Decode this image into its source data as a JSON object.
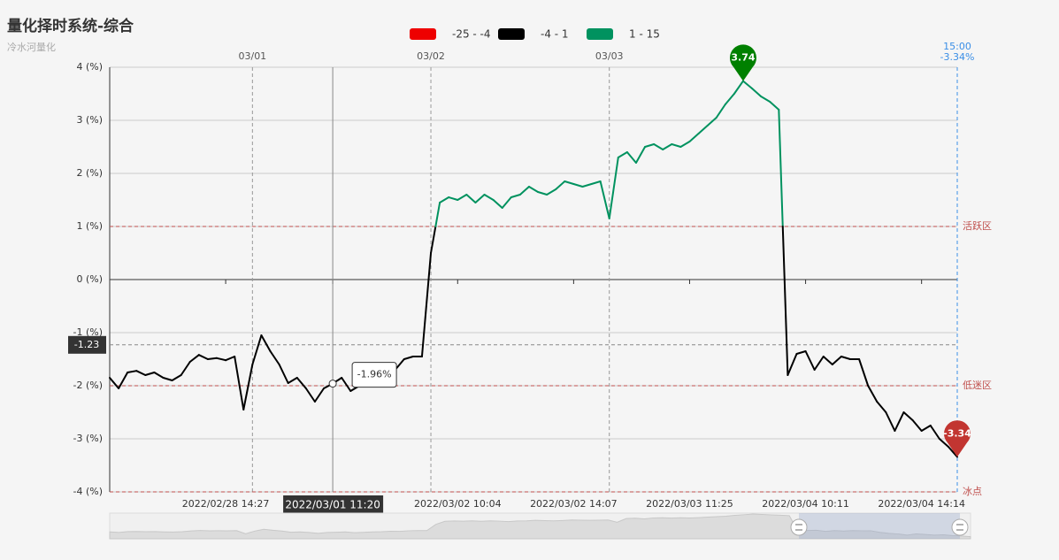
{
  "chart_data": {
    "type": "line",
    "title": "量化择时系统-综合",
    "subtitle": "冷水河量化",
    "pieces": [
      {
        "min": -25,
        "max": -4,
        "label": "-25 - -4",
        "color": "#ee0000"
      },
      {
        "min": -4,
        "max": 1,
        "label": "-4 - 1",
        "color": "#000000"
      },
      {
        "min": 1,
        "max": 15,
        "label": "1 - 15",
        "color": "#00925f"
      }
    ],
    "categories": [
      null,
      null,
      null,
      null,
      null,
      null,
      null,
      null,
      null,
      null,
      null,
      null,
      null,
      "2022/02/28 14:27",
      null,
      null,
      null,
      null,
      null,
      null,
      null,
      null,
      null,
      null,
      null,
      "2022/03/01 11:20",
      null,
      null,
      null,
      null,
      null,
      null,
      null,
      null,
      null,
      null,
      null,
      null,
      null,
      "2022/03/02 10:04",
      null,
      null,
      null,
      null,
      null,
      null,
      null,
      null,
      null,
      null,
      null,
      null,
      "2022/03/02 14:07",
      null,
      null,
      null,
      null,
      null,
      null,
      null,
      null,
      null,
      null,
      null,
      null,
      "2022/03/03 11:25",
      null,
      null,
      null,
      null,
      null,
      null,
      null,
      null,
      null,
      null,
      null,
      null,
      "2022/03/04 10:11",
      null,
      null,
      null,
      null,
      null,
      null,
      null,
      null,
      null,
      null,
      null,
      null,
      "2022/03/04 14:14",
      null,
      null,
      null,
      null
    ],
    "day_labels": [
      null,
      null,
      null,
      null,
      null,
      null,
      null,
      null,
      null,
      null,
      null,
      null,
      null,
      null,
      null,
      null,
      "03/01",
      null,
      null,
      null,
      null,
      null,
      null,
      null,
      null,
      null,
      null,
      null,
      null,
      null,
      null,
      null,
      null,
      null,
      null,
      null,
      "03/02",
      null,
      null,
      null,
      null,
      null,
      null,
      null,
      null,
      null,
      null,
      null,
      null,
      null,
      null,
      null,
      null,
      null,
      null,
      null,
      "03/03",
      null,
      null,
      null,
      null,
      null,
      null,
      null,
      null,
      null,
      null,
      null,
      null,
      null,
      null,
      null,
      null,
      null,
      null,
      null,
      null,
      null,
      null,
      null,
      null,
      null,
      null,
      null,
      null,
      null,
      null,
      null,
      null,
      null,
      null,
      null,
      null,
      null,
      null,
      "15:00"
    ],
    "end_label": "-3.34%",
    "values": [
      -1.85,
      -2.05,
      -1.75,
      -1.72,
      -1.8,
      -1.75,
      -1.85,
      -1.9,
      -1.8,
      -1.55,
      -1.42,
      -1.5,
      -1.48,
      -1.52,
      -1.45,
      -2.45,
      -1.6,
      -1.05,
      -1.35,
      -1.6,
      -1.95,
      -1.85,
      -2.05,
      -2.3,
      -2.05,
      -1.96,
      -1.85,
      -2.1,
      -2.0,
      -1.85,
      -1.8,
      -1.65,
      -1.7,
      -1.5,
      -1.45,
      -1.45,
      0.5,
      1.45,
      1.55,
      1.5,
      1.6,
      1.45,
      1.6,
      1.5,
      1.35,
      1.55,
      1.6,
      1.75,
      1.65,
      1.6,
      1.7,
      1.85,
      1.8,
      1.75,
      1.8,
      1.85,
      1.15,
      2.3,
      2.4,
      2.2,
      2.5,
      2.55,
      2.45,
      2.55,
      2.5,
      2.6,
      2.75,
      2.9,
      3.05,
      3.3,
      3.5,
      3.74,
      3.6,
      3.45,
      3.35,
      3.2,
      -1.8,
      -1.4,
      -1.35,
      -1.7,
      -1.45,
      -1.6,
      -1.45,
      -1.5,
      -1.5,
      -2.0,
      -2.3,
      -2.5,
      -2.85,
      -2.5,
      -2.65,
      -2.85,
      -2.75,
      -3.0,
      -3.15,
      -3.34
    ],
    "ylim": [
      -4,
      4
    ],
    "yticks": [
      {
        "value": -4,
        "label": "-4 (%)"
      },
      {
        "value": -3,
        "label": "-3 (%)"
      },
      {
        "value": -2,
        "label": "-2 (%)"
      },
      {
        "value": -1,
        "label": "-1 (%)"
      },
      {
        "value": 0,
        "label": "0 (%)"
      },
      {
        "value": 1,
        "label": "1 (%)"
      },
      {
        "value": 2,
        "label": "2 (%)"
      },
      {
        "value": 3,
        "label": "3 (%)"
      },
      {
        "value": 4,
        "label": "4 (%)"
      }
    ],
    "grid": true,
    "mark_lines": [
      {
        "value": 1,
        "label": "活跃区"
      },
      {
        "value": -2,
        "label": "低迷区"
      },
      {
        "value": -4,
        "label": "冰点"
      }
    ],
    "average_line": {
      "value": -1.23
    },
    "mark_points": [
      {
        "value": 3.74,
        "color": "#008000"
      },
      {
        "value": -3.34,
        "color": "#c23531"
      }
    ],
    "pointer": {
      "category": "2022/03/01 11:20",
      "value_label": "-1.96%"
    }
  }
}
